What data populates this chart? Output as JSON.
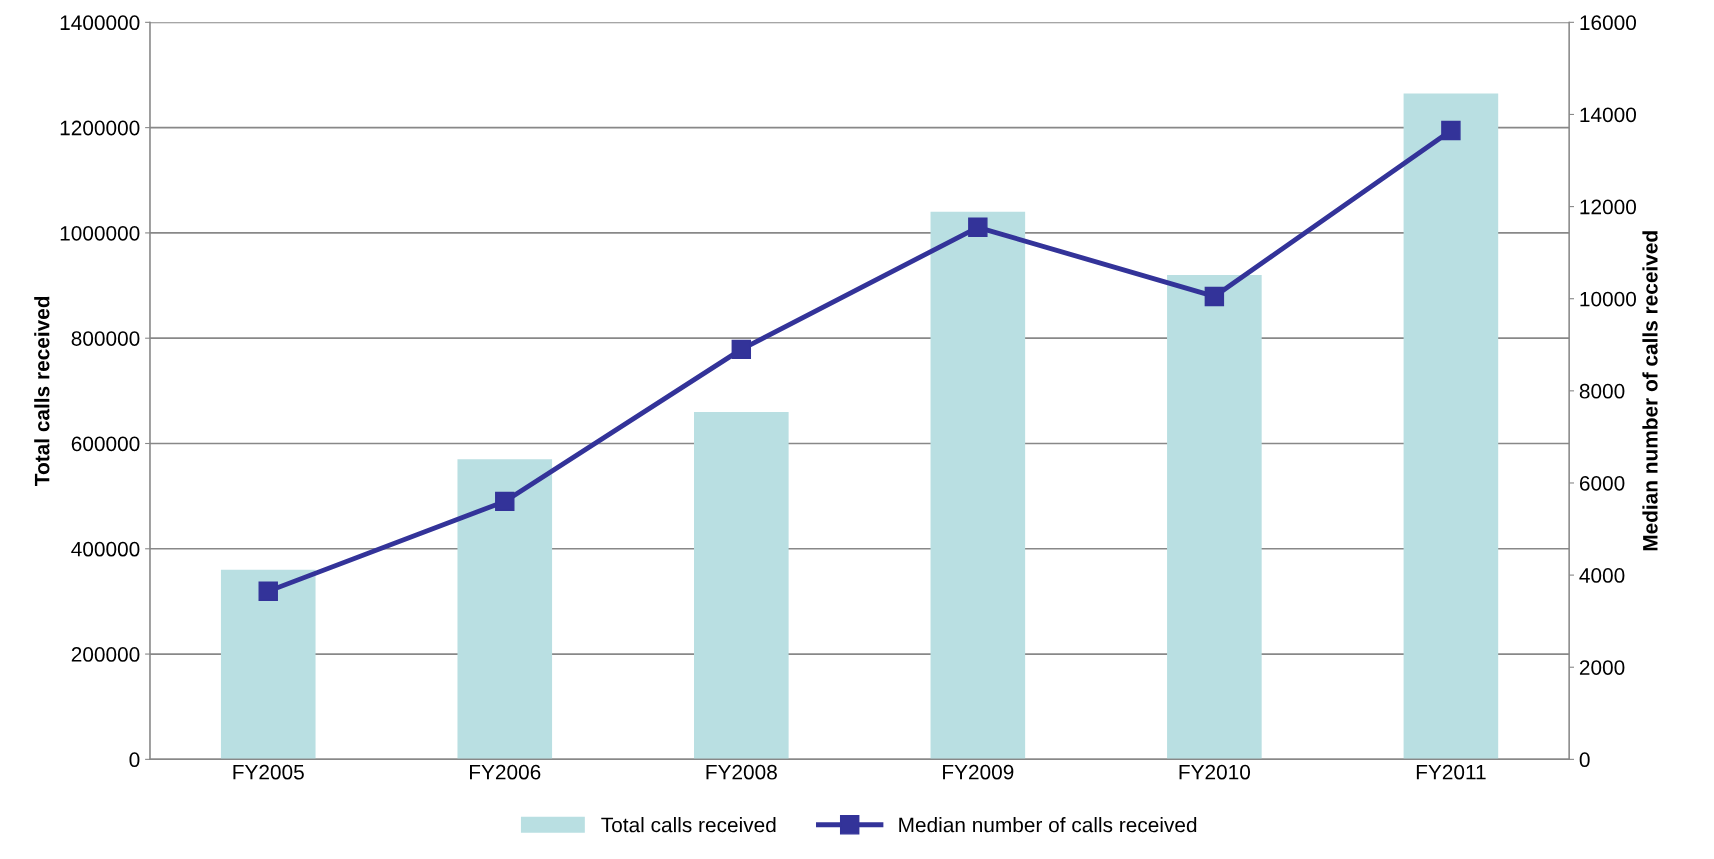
{
  "chart_data": {
    "type": "bar",
    "ylabel": "Total calls received",
    "y2label": "Median number of calls received",
    "categories": [
      "FY2005",
      "FY2006",
      "FY2008",
      "FY2009",
      "FY2010",
      "FY2011"
    ],
    "series": [
      {
        "name": "Total calls received",
        "color": "#b9dfe2",
        "values": [
          360000,
          570000,
          660000,
          1040000,
          920000,
          1265000
        ]
      },
      {
        "name": "Median number of calls received",
        "type": "line",
        "axis": "y2",
        "color": "#333399",
        "marker": "square",
        "values": [
          3650,
          5600,
          8900,
          11550,
          10050,
          13650
        ]
      }
    ],
    "ylim": [
      0,
      1400000
    ],
    "yticks": [
      0,
      200000,
      400000,
      600000,
      800000,
      1000000,
      1200000,
      1400000
    ],
    "y2lim": [
      0,
      16000
    ],
    "y2ticks": [
      0,
      2000,
      4000,
      6000,
      8000,
      10000,
      12000,
      14000,
      16000
    ],
    "grid": "y",
    "legend": "bottom"
  }
}
